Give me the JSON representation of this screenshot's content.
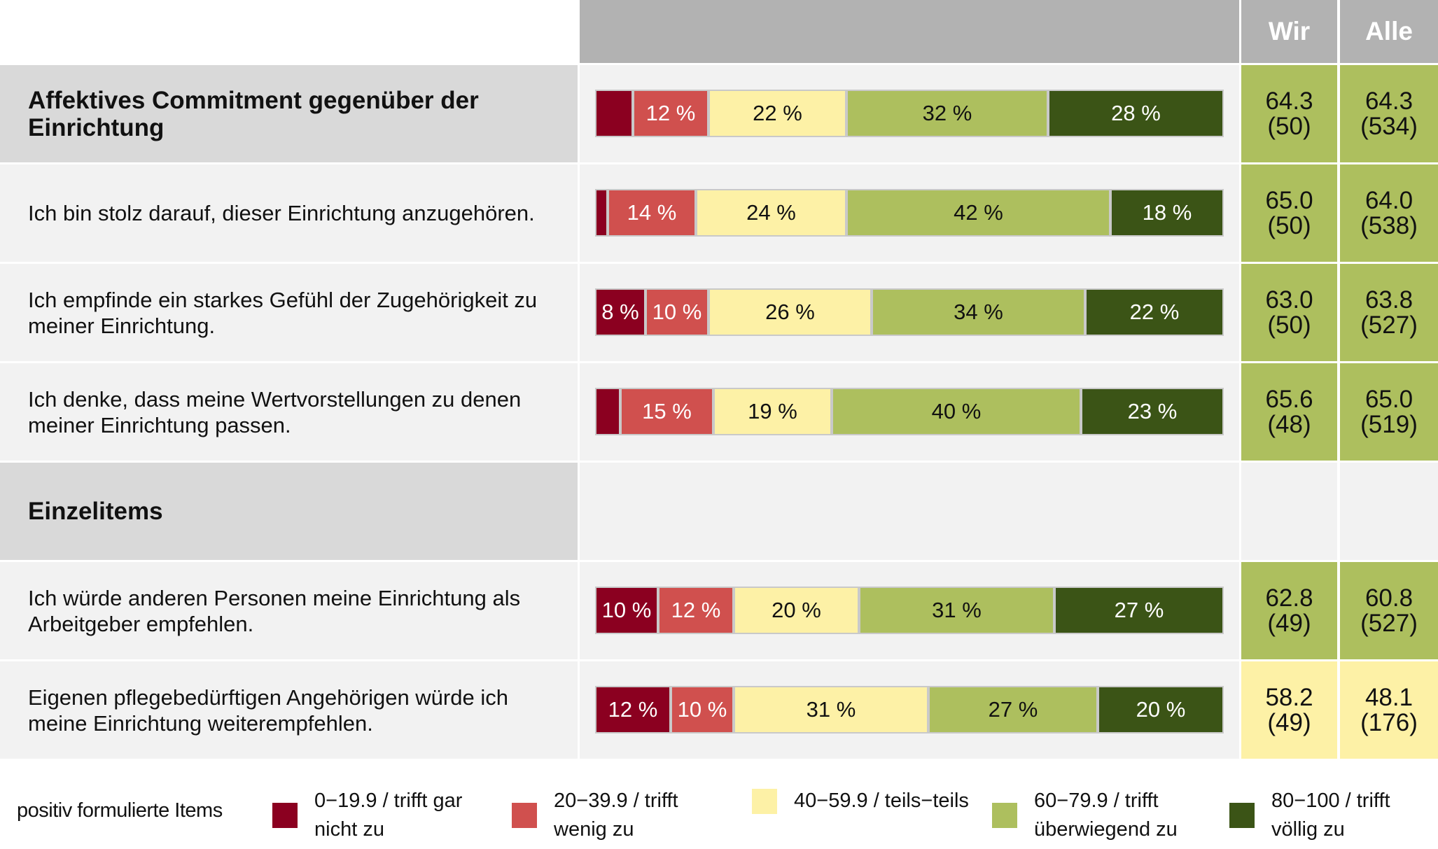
{
  "header": {
    "col_wir": "Wir",
    "col_alle": "Alle"
  },
  "colors": {
    "header_bg": "#b2b2b2",
    "section_bg": "#d9d9d9",
    "row_bg": "#f2f2f2",
    "value_green": "#adbf5e",
    "value_yellow": "#fdf1a6",
    "categories": [
      "#8b0020",
      "#d0504e",
      "#fdf1a6",
      "#adbf5e",
      "#3b5416"
    ]
  },
  "chart_data": {
    "type": "bar",
    "orientation": "horizontal",
    "stacked": true,
    "percent": true,
    "legend_position": "bottom",
    "legend_title": "positiv formulierte Items",
    "categories": [
      "0−19.9 / trifft gar nicht zu",
      "20−39.9 / trifft wenig zu",
      "40−59.9 / teils−teils",
      "60−79.9 / trifft überwiegend zu",
      "80−100 / trifft völlig zu"
    ],
    "rows": [
      {
        "label": "Affektives Commitment gegenüber der Einrichtung",
        "section": true,
        "values": [
          6,
          12,
          22,
          32,
          28
        ],
        "labels": [
          "",
          "12 %",
          "22 %",
          "32 %",
          "28 %"
        ],
        "wir": "64.3",
        "wir_n": "(50)",
        "alle": "64.3",
        "alle_n": "(534)",
        "value_color": "green"
      },
      {
        "label": "Ich bin stolz darauf, dieser Einrichtung anzugehören.",
        "section": false,
        "values": [
          2,
          14,
          24,
          42,
          18
        ],
        "labels": [
          "",
          "14 %",
          "24 %",
          "42 %",
          "18 %"
        ],
        "wir": "65.0",
        "wir_n": "(50)",
        "alle": "64.0",
        "alle_n": "(538)",
        "value_color": "green"
      },
      {
        "label": "Ich empfinde ein starkes Gefühl der Zugehörigkeit zu meiner Einrichtung.",
        "section": false,
        "values": [
          8,
          10,
          26,
          34,
          22
        ],
        "labels": [
          "8 %",
          "10 %",
          "26 %",
          "34 %",
          "22 %"
        ],
        "wir": "63.0",
        "wir_n": "(50)",
        "alle": "63.8",
        "alle_n": "(527)",
        "value_color": "green"
      },
      {
        "label": "Ich denke, dass meine Wertvorstellungen zu denen meiner Einrichtung passen.",
        "section": false,
        "values": [
          4,
          15,
          19,
          40,
          23
        ],
        "labels": [
          "",
          "15 %",
          "19 %",
          "40 %",
          "23 %"
        ],
        "wir": "65.6",
        "wir_n": "(48)",
        "alle": "65.0",
        "alle_n": "(519)",
        "value_color": "green"
      },
      {
        "label": "Einzelitems",
        "section": true,
        "header_only": true
      },
      {
        "label": "Ich würde anderen Personen meine Einrichtung als Arbeitgeber empfehlen.",
        "section": false,
        "values": [
          10,
          12,
          20,
          31,
          27
        ],
        "labels": [
          "10 %",
          "12 %",
          "20 %",
          "31 %",
          "27 %"
        ],
        "wir": "62.8",
        "wir_n": "(49)",
        "alle": "60.8",
        "alle_n": "(527)",
        "value_color": "green"
      },
      {
        "label": "Eigenen pflegebedürftigen Angehörigen würde ich meine Einrichtung weiterempfehlen.",
        "section": false,
        "values": [
          12,
          10,
          31,
          27,
          20
        ],
        "labels": [
          "12 %",
          "10 %",
          "31 %",
          "27 %",
          "20 %"
        ],
        "wir": "58.2",
        "wir_n": "(49)",
        "alle": "48.1",
        "alle_n": "(176)",
        "value_color": "yellow"
      }
    ]
  },
  "legend": {
    "title": "positiv formulierte Items",
    "items": [
      {
        "text": "0−19.9 / trifft gar\nnicht zu",
        "icon": "square-swatch"
      },
      {
        "text": "20−39.9 / trifft\nwenig zu",
        "icon": "square-swatch"
      },
      {
        "text": "40−59.9 / teils−teils",
        "icon": "square-swatch"
      },
      {
        "text": "60−79.9 / trifft\nüberwiegend zu",
        "icon": "square-swatch"
      },
      {
        "text": "80−100 / trifft\nvöllig zu",
        "icon": "square-swatch"
      }
    ]
  }
}
